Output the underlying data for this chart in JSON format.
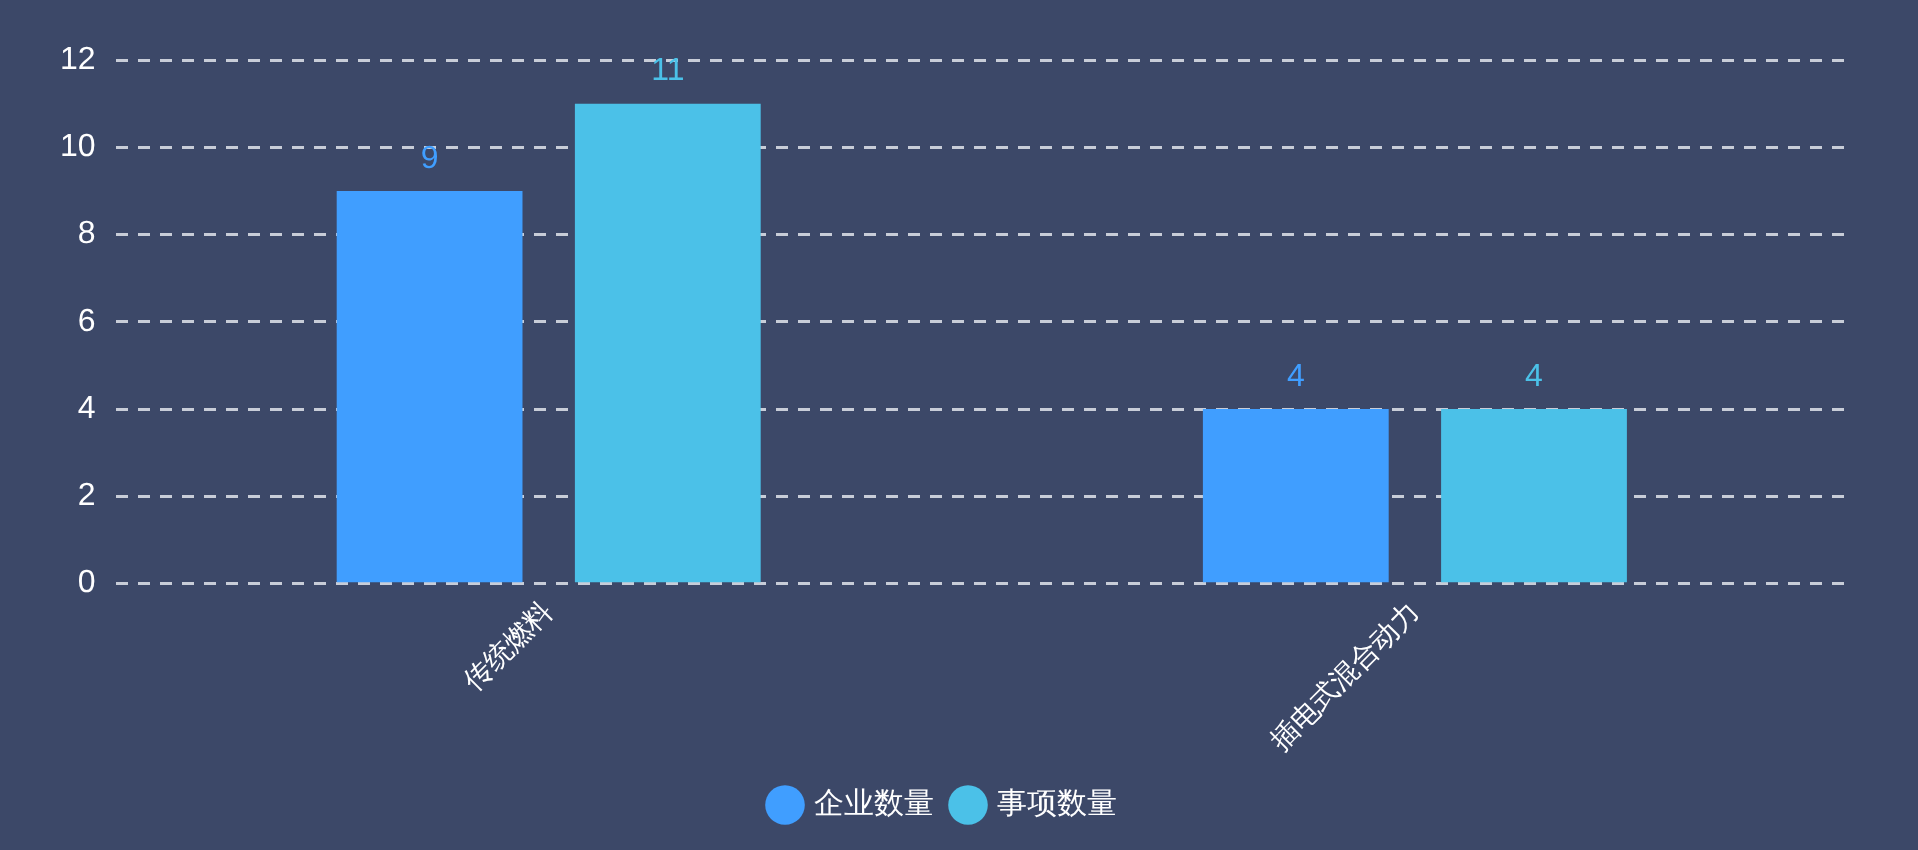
{
  "chart_data": {
    "type": "bar",
    "categories": [
      "传统燃料",
      "插电式混合动力"
    ],
    "series": [
      {
        "name": "企业数量",
        "color": "#409eff",
        "values": [
          9,
          4
        ]
      },
      {
        "name": "事项数量",
        "color": "#4bc1e8",
        "values": [
          11,
          4
        ]
      }
    ],
    "ylim": [
      0,
      12
    ],
    "yticks": [
      0,
      2,
      4,
      6,
      8,
      10,
      12
    ],
    "grid": "y",
    "legend": "bottom",
    "data_labels": true
  }
}
